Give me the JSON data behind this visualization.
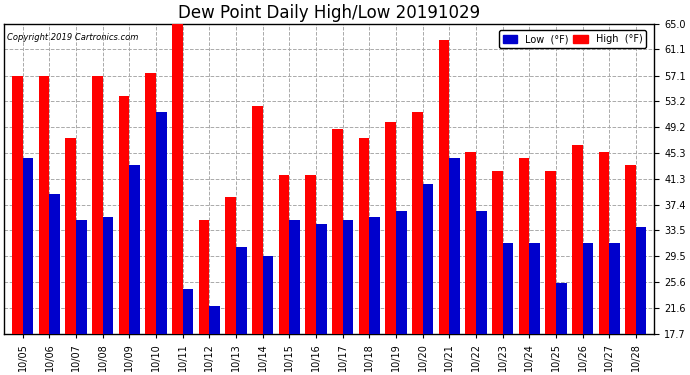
{
  "title": "Dew Point Daily High/Low 20191029",
  "copyright": "Copyright 2019 Cartronics.com",
  "dates": [
    "10/05",
    "10/06",
    "10/07",
    "10/08",
    "10/09",
    "10/10",
    "10/11",
    "10/12",
    "10/13",
    "10/14",
    "10/15",
    "10/16",
    "10/17",
    "10/18",
    "10/19",
    "10/20",
    "10/21",
    "10/22",
    "10/23",
    "10/24",
    "10/25",
    "10/26",
    "10/27",
    "10/28"
  ],
  "high": [
    57.0,
    57.0,
    47.5,
    57.0,
    54.0,
    57.5,
    65.0,
    35.0,
    38.5,
    52.5,
    42.0,
    42.0,
    49.0,
    47.5,
    50.0,
    51.5,
    62.5,
    45.5,
    42.5,
    44.5,
    42.5,
    46.5,
    45.5,
    43.5
  ],
  "low": [
    44.5,
    39.0,
    35.0,
    35.5,
    43.5,
    51.5,
    24.5,
    22.0,
    31.0,
    29.5,
    35.0,
    34.5,
    35.0,
    35.5,
    36.5,
    40.5,
    44.5,
    36.5,
    31.5,
    31.5,
    25.5,
    31.5,
    31.5,
    34.0
  ],
  "ylim_min": 17.7,
  "ylim_max": 65.0,
  "yticks": [
    17.7,
    21.6,
    25.6,
    29.5,
    33.5,
    37.4,
    41.3,
    45.3,
    49.2,
    53.2,
    57.1,
    61.1,
    65.0
  ],
  "high_color": "#ff0000",
  "low_color": "#0000cc",
  "bg_color": "#ffffff",
  "plot_bg_color": "#ffffff",
  "grid_color": "#aaaaaa",
  "title_fontsize": 12,
  "tick_fontsize": 7,
  "bar_width": 0.4,
  "legend_low_label": "Low  (°F)",
  "legend_high_label": "High  (°F)"
}
